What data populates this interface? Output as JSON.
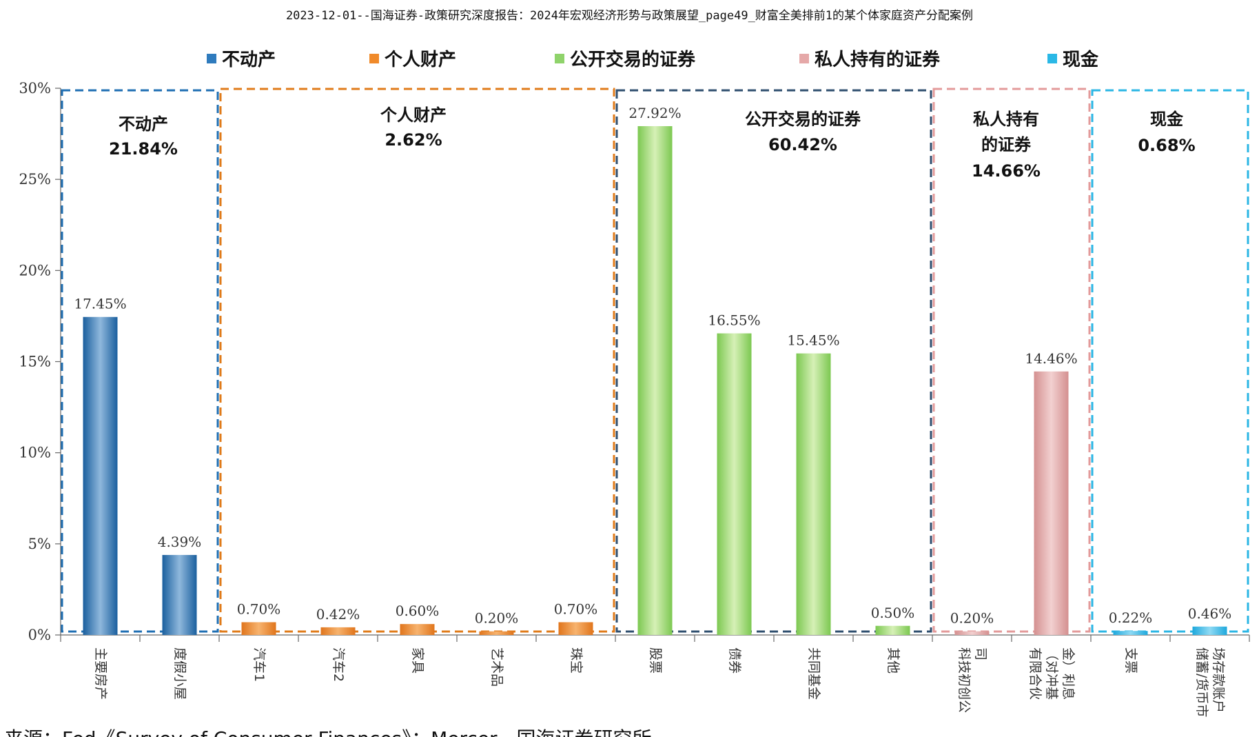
{
  "header": {
    "title": "2023-12-01--国海证券-政策研究深度报告：2024年宏观经济形势与政策展望_page49_财富全美排前1的某个体家庭资产分配案例"
  },
  "legend": [
    {
      "label": "不动产",
      "color": "#2f7bbd"
    },
    {
      "label": "个人财产",
      "color": "#f08a2a"
    },
    {
      "label": "公开交易的证券",
      "color": "#8fd36b"
    },
    {
      "label": "私人持有的证券",
      "color": "#e5a8a8"
    },
    {
      "label": "现金",
      "color": "#2ab8e6"
    }
  ],
  "groups": [
    {
      "name": "不动产",
      "total": "21.84%",
      "color": "#1f6fb3",
      "start": 0,
      "end": 1
    },
    {
      "name": "个人财产",
      "total": "2.62%",
      "color": "#e07b1a",
      "start": 2,
      "end": 6
    },
    {
      "name": "公开交易的证券",
      "total": "60.42%",
      "color": "#2f4f6f",
      "start": 7,
      "end": 10
    },
    {
      "name": "私人持有的证券",
      "total": "14.66%",
      "color": "#e39a9a",
      "start": 11,
      "end": 12
    },
    {
      "name": "现金",
      "total": "0.68%",
      "color": "#2bb6e4",
      "start": 13,
      "end": 14
    }
  ],
  "chart_data": {
    "type": "bar",
    "ylim": [
      0,
      30
    ],
    "yticks": [
      "0%",
      "5%",
      "10%",
      "15%",
      "20%",
      "25%",
      "30%"
    ],
    "categories": [
      "主要房产",
      "度假小屋",
      "汽车1",
      "汽车2",
      "家具",
      "艺术品",
      "珠宝",
      "股票",
      "债券",
      "共同基金",
      "其他",
      "科技初创公司",
      "有限合伙（对冲基金）利息",
      "支票",
      "储蓄/货币市场存款账户"
    ],
    "x_label_lines": [
      [
        "主要房产"
      ],
      [
        "度假小屋"
      ],
      [
        "汽车1"
      ],
      [
        "汽车2"
      ],
      [
        "家具"
      ],
      [
        "艺术品"
      ],
      [
        "珠宝"
      ],
      [
        "股票"
      ],
      [
        "债券"
      ],
      [
        "共同基金"
      ],
      [
        "其他"
      ],
      [
        "科技初创公",
        "司"
      ],
      [
        "有限合伙",
        "（对冲基",
        "金）利息"
      ],
      [
        "支票"
      ],
      [
        "储蓄/货币市",
        "场存款账户"
      ]
    ],
    "values": [
      17.45,
      4.39,
      0.7,
      0.42,
      0.6,
      0.2,
      0.7,
      27.92,
      16.55,
      15.45,
      0.5,
      0.2,
      14.46,
      0.22,
      0.46
    ],
    "value_labels": [
      "17.45%",
      "4.39%",
      "0.70%",
      "0.42%",
      "0.60%",
      "0.20%",
      "0.70%",
      "27.92%",
      "16.55%",
      "15.45%",
      "0.50%",
      "0.20%",
      "14.46%",
      "0.22%",
      "0.46%"
    ],
    "series_of_bar": [
      0,
      0,
      1,
      1,
      1,
      1,
      1,
      2,
      2,
      2,
      2,
      3,
      3,
      4,
      4
    ],
    "legend_position": "top",
    "grid": false
  },
  "footer": {
    "text": "来源：Fed《Survey of Consumer Finances》；Mercer，国海证券研究所"
  }
}
